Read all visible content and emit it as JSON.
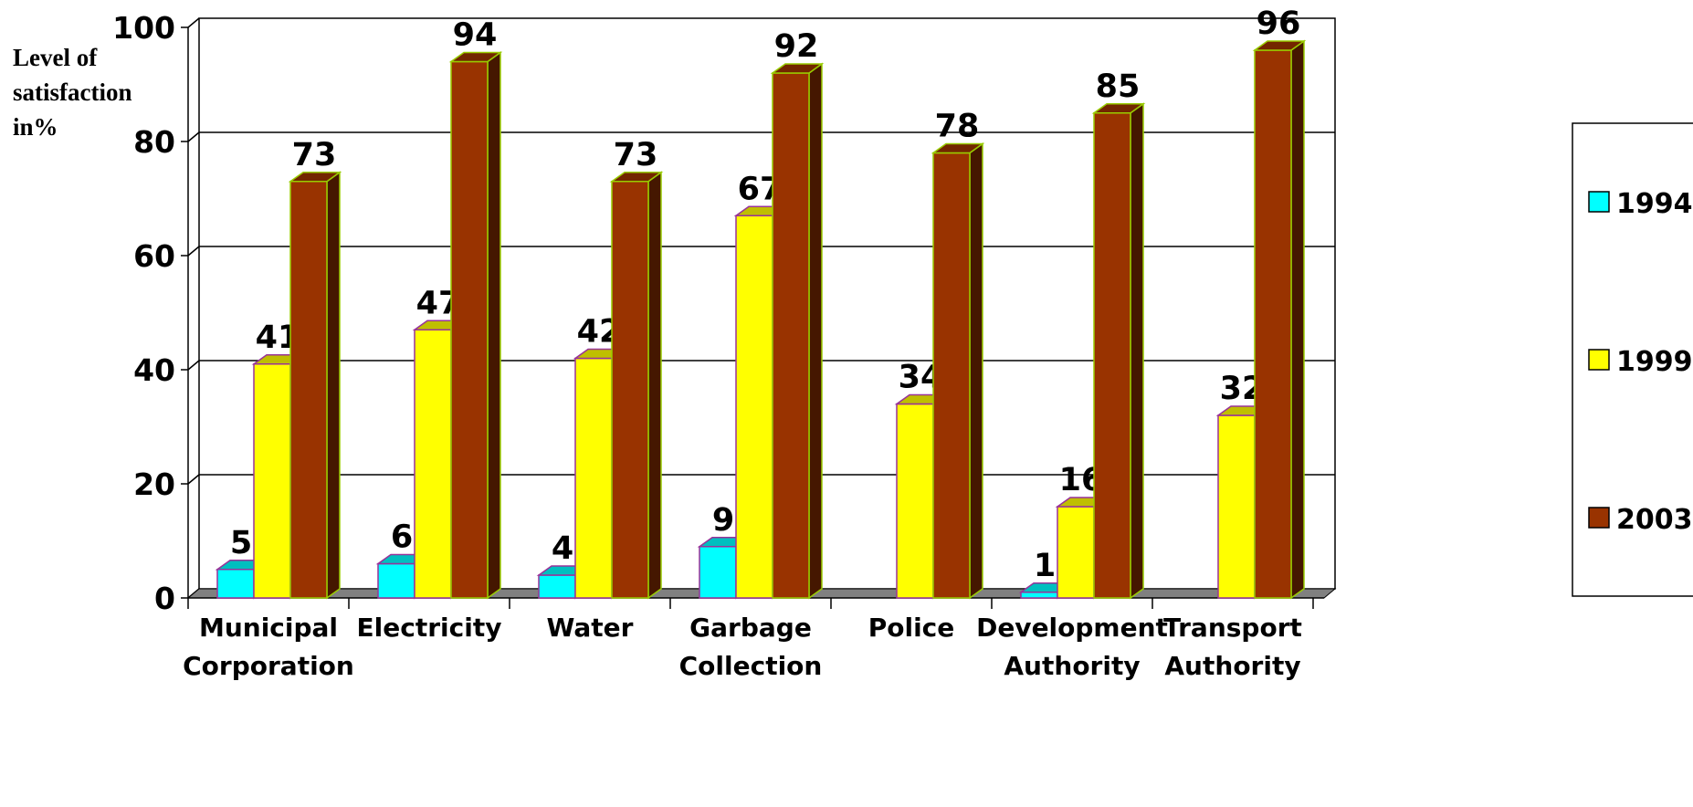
{
  "chart_data": {
    "type": "bar",
    "ylabel": "Level of\nsatisfaction\nin%",
    "ylim": [
      0,
      100
    ],
    "yticks": [
      0,
      20,
      40,
      60,
      80,
      100
    ],
    "categories": [
      "Municipal Corporation",
      "Electricity",
      "Water",
      "Garbage Collection",
      "Police",
      "Development Authority",
      "Transport Authority"
    ],
    "series": [
      {
        "name": "1994",
        "color": "#00FFFF",
        "values": [
          5,
          6,
          4,
          9,
          null,
          1,
          null
        ]
      },
      {
        "name": "1999",
        "color": "#FFFF00",
        "values": [
          41,
          47,
          42,
          67,
          34,
          16,
          32
        ]
      },
      {
        "name": "2003",
        "color": "#993300",
        "values": [
          73,
          94,
          73,
          92,
          78,
          85,
          96
        ]
      }
    ],
    "grid": true,
    "legend": "right",
    "three_d": true
  }
}
